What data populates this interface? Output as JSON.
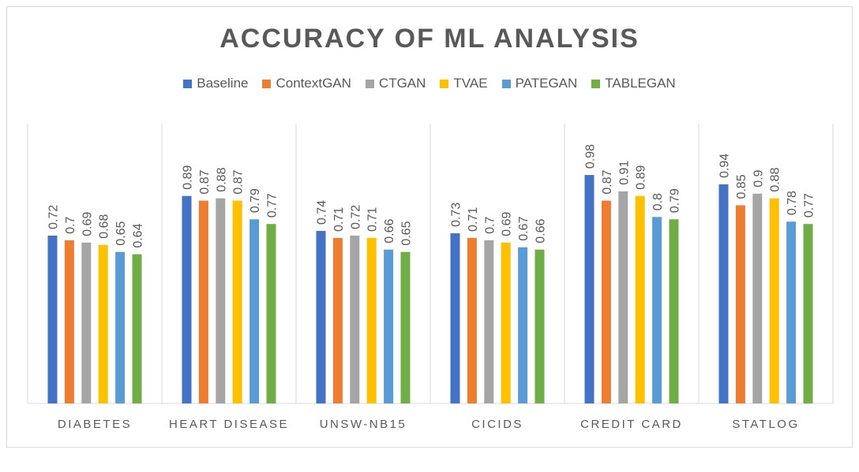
{
  "chart_data": {
    "type": "bar",
    "title": "ACCURACY OF ML ANALYSIS",
    "categories": [
      "DIABETES",
      "HEART DISEASE",
      "UNSW-NB15",
      "CICIDS",
      "CREDIT CARD",
      "STATLOG"
    ],
    "series": [
      {
        "name": "Baseline",
        "color": "#4472c4",
        "values": [
          0.72,
          0.89,
          0.74,
          0.73,
          0.98,
          0.94
        ]
      },
      {
        "name": "ContextGAN",
        "color": "#ed7d31",
        "values": [
          0.7,
          0.87,
          0.71,
          0.71,
          0.87,
          0.85
        ]
      },
      {
        "name": "CTGAN",
        "color": "#a5a5a5",
        "values": [
          0.69,
          0.88,
          0.72,
          0.7,
          0.91,
          0.9
        ]
      },
      {
        "name": "TVAE",
        "color": "#ffc000",
        "values": [
          0.68,
          0.87,
          0.71,
          0.69,
          0.89,
          0.88
        ]
      },
      {
        "name": "PATEGAN",
        "color": "#5b9bd5",
        "values": [
          0.65,
          0.79,
          0.66,
          0.67,
          0.8,
          0.78
        ]
      },
      {
        "name": "TABLEGAN",
        "color": "#70ad47",
        "values": [
          0.64,
          0.77,
          0.65,
          0.66,
          0.79,
          0.77
        ]
      }
    ],
    "ylim": [
      0,
      1.2
    ],
    "grid": false,
    "legend": "top",
    "data_labels": true
  }
}
